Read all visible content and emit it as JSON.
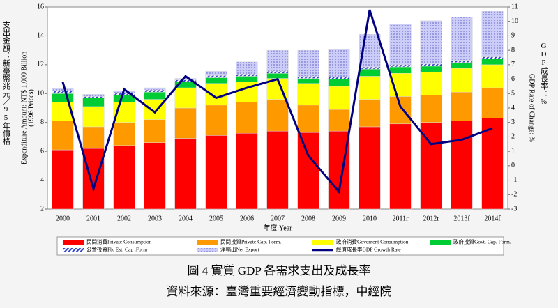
{
  "chart_data": {
    "type": "bar",
    "stacked": true,
    "categories": [
      "2000",
      "2001",
      "2002",
      "2003",
      "2004",
      "2005",
      "2006",
      "2007",
      "2008",
      "2009",
      "2010",
      "2011r",
      "2012r",
      "2013f",
      "2014f"
    ],
    "x_label": "年度 Year",
    "y_label": "支出金額：新臺幣兆元／95年價格",
    "y_label_en": [
      "Expenditure Amount: NT$ 1,000 Billion",
      "(1996 Prices)"
    ],
    "y2_label": "GDP成長率：%",
    "y2_label_en": "GDP Rate of Change: %",
    "ylim": [
      2,
      16
    ],
    "yticks": [
      2,
      4,
      6,
      8,
      10,
      12,
      14,
      16
    ],
    "y2lim": [
      -3,
      11
    ],
    "y2ticks": [
      -3,
      -2,
      -1,
      0,
      1,
      2,
      3,
      4,
      5,
      6,
      7,
      8,
      9,
      10,
      11
    ],
    "grid": false,
    "series": [
      {
        "name": "民間消費Private Consumption",
        "color": "#ff0000",
        "values": [
          6.1,
          6.2,
          6.4,
          6.6,
          6.9,
          7.1,
          7.25,
          7.4,
          7.3,
          7.4,
          7.7,
          7.9,
          8.0,
          8.1,
          8.3
        ]
      },
      {
        "name": "民間投資Private Cap. Form.",
        "color": "#ff9900",
        "values": [
          2.0,
          1.5,
          1.6,
          1.6,
          2.1,
          2.1,
          2.15,
          2.2,
          1.9,
          1.5,
          1.9,
          1.9,
          1.9,
          2.0,
          2.1
        ]
      },
      {
        "name": "政府消費Govement Consumption",
        "color": "#ffff00",
        "values": [
          1.3,
          1.4,
          1.4,
          1.4,
          1.4,
          1.5,
          1.4,
          1.45,
          1.5,
          1.6,
          1.6,
          1.6,
          1.6,
          1.65,
          1.6
        ]
      },
      {
        "name": "政府投資Govt. Cap. Form.",
        "color": "#00cc33",
        "values": [
          0.6,
          0.6,
          0.5,
          0.5,
          0.4,
          0.4,
          0.4,
          0.35,
          0.35,
          0.5,
          0.5,
          0.45,
          0.4,
          0.4,
          0.4
        ]
      },
      {
        "name": "公營投資Pb. Est. Cap .Form",
        "color": "#3344cc",
        "pattern": "hatch",
        "values": [
          0.2,
          0.1,
          0.15,
          0.15,
          0.15,
          0.15,
          0.15,
          0.15,
          0.15,
          0.15,
          0.15,
          0.15,
          0.15,
          0.15,
          0.15
        ]
      },
      {
        "name": "淨輸出Net Export",
        "color": "#b8b8f0",
        "pattern": "dots",
        "values": [
          0.15,
          0.15,
          0.15,
          0.15,
          0.1,
          0.3,
          0.85,
          1.45,
          1.8,
          1.9,
          2.25,
          2.8,
          3.0,
          3.0,
          3.15
        ]
      },
      {
        "name": "經濟成長率GDP Growth Rate",
        "color": "#000080",
        "type": "line",
        "axis": "y2",
        "values": [
          5.8,
          -1.6,
          5.3,
          3.7,
          6.2,
          4.7,
          5.4,
          6.0,
          0.7,
          -1.8,
          10.8,
          4.1,
          1.5,
          1.8,
          2.6
        ]
      }
    ],
    "caption": "圖 4  實質 GDP 各需求支出及成長率",
    "source": "資料來源：臺灣重要經濟變動指標，中經院"
  }
}
